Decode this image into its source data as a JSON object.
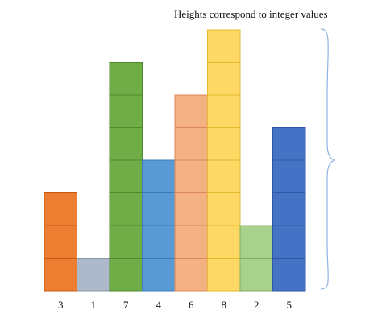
{
  "caption": "Heights correspond to integer values",
  "chart_data": {
    "type": "bar",
    "categories": [
      "3",
      "1",
      "7",
      "4",
      "6",
      "8",
      "2",
      "5"
    ],
    "values": [
      3,
      1,
      7,
      4,
      6,
      8,
      2,
      5
    ],
    "colors": [
      "#ed7d31",
      "#adb9ca",
      "#70ad47",
      "#5b9bd5",
      "#f4b183",
      "#ffd966",
      "#a9d18e",
      "#4472c4"
    ],
    "stroke_colors": [
      "#c65a14",
      "#8a96a8",
      "#4d8a2c",
      "#3b7bbd",
      "#d9895a",
      "#e6b830",
      "#7fae62",
      "#2f55a4"
    ],
    "brace_color": "#8fb4e3"
  }
}
